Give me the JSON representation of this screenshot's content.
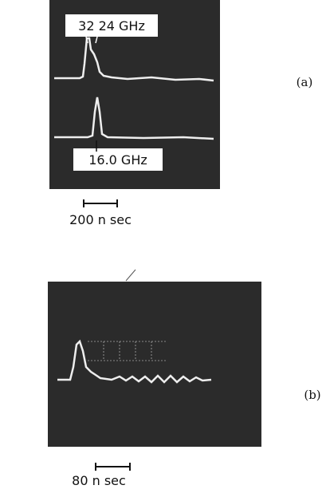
{
  "panel_a": {
    "marker_top": "32 24 GHz",
    "marker_bottom": "16.0 GHz",
    "time_scale": "200 n sec",
    "label": "(a)"
  },
  "panel_b": {
    "time_scale": "80 n sec",
    "label": "(b)"
  }
}
